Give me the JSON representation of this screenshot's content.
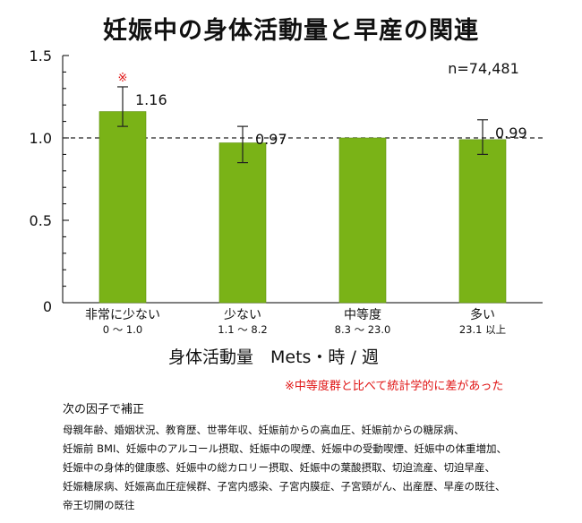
{
  "chart_data": {
    "type": "bar",
    "title": "妊娠中の身体活動量と早産の関連",
    "xlabel": "身体活動量　Mets・時 / 週",
    "ylabel": "",
    "ylim": [
      0,
      1.5
    ],
    "yticks": [
      "0",
      "0.5",
      "1.0",
      "1.5"
    ],
    "reference_line": 1.0,
    "sample_size_label": "n=74,481",
    "bar_color": "#7ab317",
    "marker_color": "#e01515",
    "categories": [
      {
        "name": "非常に少ない",
        "range": "0 〜 1.0",
        "value": 1.16,
        "err_low": 1.07,
        "err_high": 1.31,
        "label": "1.16",
        "marker": "※"
      },
      {
        "name": "少ない",
        "range": "1.1 〜 8.2",
        "value": 0.97,
        "err_low": 0.85,
        "err_high": 1.07,
        "label": "0.97",
        "marker": ""
      },
      {
        "name": "中等度",
        "range": "8.3 〜 23.0",
        "value": 1.0,
        "err_low": null,
        "err_high": null,
        "label": "",
        "marker": ""
      },
      {
        "name": "多い",
        "range": "23.1 以上",
        "value": 0.99,
        "err_low": 0.9,
        "err_high": 1.11,
        "label": "0.99",
        "marker": ""
      }
    ]
  },
  "notes": {
    "significance": "※中等度群と比べて統計学的に差があった",
    "adjust_heading": "次の因子で補正",
    "adjust_lines": [
      "母親年齢、婚姻状況、教育歴、世帯年収、妊娠前からの高血圧、妊娠前からの糖尿病、",
      "妊娠前 BMI、妊娠中のアルコール摂取、妊娠中の喫煙、妊娠中の受動喫煙、妊娠中の体重増加、",
      "妊娠中の身体的健康感、妊娠中の総カロリー摂取、妊娠中の葉酸摂取、切迫流産、切迫早産、",
      "妊娠糖尿病、妊娠高血圧症候群、子宮内感染、子宮内膜症、子宮頸がん、出産歴、早産の既往、",
      "帝王切開の既往"
    ]
  }
}
